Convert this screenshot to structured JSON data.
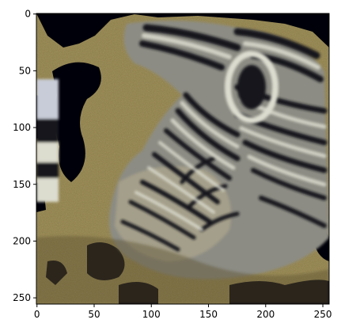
{
  "image": {
    "subject": "zebra-head-photo",
    "x_ticks": [
      "0",
      "50",
      "100",
      "150",
      "200",
      "250"
    ],
    "y_ticks": [
      "0",
      "50",
      "100",
      "150",
      "200",
      "250"
    ],
    "x_tick_values": [
      0,
      50,
      100,
      150,
      200,
      250
    ],
    "y_tick_values": [
      0,
      50,
      100,
      150,
      200,
      250
    ],
    "extent": [
      256,
      256
    ],
    "colors": {
      "background": "#ffffff",
      "savanna": "#8a7a45",
      "savanna_dark": "#5f5330",
      "stripe_dark": "#14141c",
      "stripe_light": "#dcdccf",
      "void": "#00000a"
    }
  }
}
